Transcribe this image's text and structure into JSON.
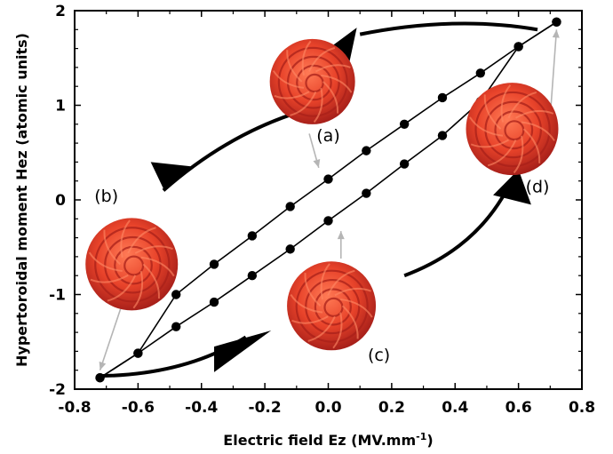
{
  "chart_data": {
    "type": "line",
    "title": "",
    "xlabel": "Electric field Ez (MV.mm",
    "xlabel_superscript": "-1",
    "xlabel_suffix": ")",
    "ylabel": "Hypertoroidal moment Hez (atomic units)",
    "xlim": [
      -0.8,
      0.8
    ],
    "ylim": [
      -2,
      2
    ],
    "x_ticks": [
      -0.8,
      -0.6,
      -0.4,
      -0.2,
      0.0,
      0.2,
      0.4,
      0.6,
      0.8
    ],
    "x_tick_labels": [
      "-0.8",
      "-0.6",
      "-0.4",
      "-0.2",
      "0.0",
      "0.2",
      "0.4",
      "0.6",
      "0.8"
    ],
    "y_ticks": [
      -2,
      -1,
      0,
      1,
      2
    ],
    "y_tick_labels": [
      "-2",
      "-1",
      "0",
      "1",
      "2"
    ],
    "grid": false,
    "series": [
      {
        "x": [
          -0.72,
          -0.6,
          -0.48,
          -0.36,
          -0.24,
          -0.12,
          0.0,
          0.12,
          0.24,
          0.36,
          0.48,
          0.6,
          0.72
        ],
        "y": [
          -1.88,
          -1.62,
          -1.0,
          -0.68,
          -0.38,
          -0.07,
          0.22,
          0.52,
          0.8,
          1.08,
          1.34,
          1.62,
          1.88
        ]
      },
      {
        "x": [
          -0.72,
          -0.6,
          -0.48,
          -0.36,
          -0.24,
          -0.12,
          0.0,
          0.12,
          0.24,
          0.36,
          0.48,
          0.6,
          0.72
        ],
        "y": [
          -1.88,
          -1.62,
          -1.34,
          -1.08,
          -0.8,
          -0.52,
          -0.22,
          0.07,
          0.38,
          0.68,
          1.04,
          1.62,
          1.88
        ]
      }
    ],
    "annotations": [
      {
        "label": "(a)",
        "x": 0.0,
        "y": 0.62
      },
      {
        "label": "(b)",
        "x": -0.7,
        "y": -0.02
      },
      {
        "label": "(c)",
        "x": 0.16,
        "y": -1.7
      },
      {
        "label": "(d)",
        "x": 0.66,
        "y": 0.08
      }
    ],
    "bubble_color": "#e8432a",
    "bubble_dark": "#b8261a"
  }
}
